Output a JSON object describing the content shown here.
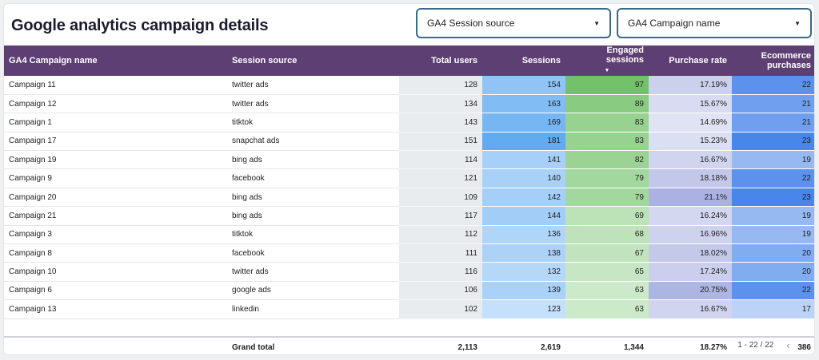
{
  "title": "Google analytics campaign details",
  "filters": {
    "session_source": "GA4 Session source",
    "campaign_name": "GA4 Campaign name"
  },
  "colors": {
    "header_bg": "#5e3f73",
    "filter_border": "#3a6b82",
    "sessions_heat": "#5aa7f0",
    "engaged_heat": "#6cbf63",
    "purchase_rate_heat": "#a6aee0",
    "ecommerce_heat": "#3f7fe8"
  },
  "table": {
    "columns": {
      "campaign": "GA4 Campaign name",
      "source": "Session source",
      "total_users": "Total users",
      "sessions": "Sessions",
      "engaged": "Engaged sessions",
      "purchase_rate": "Purchase rate",
      "ecommerce": "Ecommerce purchases"
    },
    "sort_indicator": "▼",
    "rows": [
      {
        "campaign": "Campaign 11",
        "source": "twitter ads",
        "total_users": "128",
        "sessions": "154",
        "engaged": "97",
        "purchase_rate": "17.19%",
        "ecommerce": "22"
      },
      {
        "campaign": "Campaign 12",
        "source": "twitter ads",
        "total_users": "134",
        "sessions": "163",
        "engaged": "89",
        "purchase_rate": "15.67%",
        "ecommerce": "21"
      },
      {
        "campaign": "Campaign 1",
        "source": "titktok",
        "total_users": "143",
        "sessions": "169",
        "engaged": "83",
        "purchase_rate": "14.69%",
        "ecommerce": "21"
      },
      {
        "campaign": "Campaign 17",
        "source": "snapchat ads",
        "total_users": "151",
        "sessions": "181",
        "engaged": "83",
        "purchase_rate": "15.23%",
        "ecommerce": "23"
      },
      {
        "campaign": "Campaign 19",
        "source": "bing ads",
        "total_users": "114",
        "sessions": "141",
        "engaged": "82",
        "purchase_rate": "16.67%",
        "ecommerce": "19"
      },
      {
        "campaign": "Campaign 9",
        "source": "facebook",
        "total_users": "121",
        "sessions": "140",
        "engaged": "79",
        "purchase_rate": "18.18%",
        "ecommerce": "22"
      },
      {
        "campaign": "Campaign 20",
        "source": "bing ads",
        "total_users": "109",
        "sessions": "142",
        "engaged": "79",
        "purchase_rate": "21.1%",
        "ecommerce": "23"
      },
      {
        "campaign": "Campaign 21",
        "source": "bing ads",
        "total_users": "117",
        "sessions": "144",
        "engaged": "69",
        "purchase_rate": "16.24%",
        "ecommerce": "19"
      },
      {
        "campaign": "Campaign 3",
        "source": "titktok",
        "total_users": "112",
        "sessions": "136",
        "engaged": "68",
        "purchase_rate": "16.96%",
        "ecommerce": "19"
      },
      {
        "campaign": "Campaign 8",
        "source": "facebook",
        "total_users": "111",
        "sessions": "138",
        "engaged": "67",
        "purchase_rate": "18.02%",
        "ecommerce": "20"
      },
      {
        "campaign": "Campaign 10",
        "source": "twitter ads",
        "total_users": "116",
        "sessions": "132",
        "engaged": "65",
        "purchase_rate": "17.24%",
        "ecommerce": "20"
      },
      {
        "campaign": "Campaign 6",
        "source": "google ads",
        "total_users": "106",
        "sessions": "139",
        "engaged": "63",
        "purchase_rate": "20.75%",
        "ecommerce": "22"
      },
      {
        "campaign": "Campaign 13",
        "source": "linkedin",
        "total_users": "102",
        "sessions": "123",
        "engaged": "63",
        "purchase_rate": "16.67%",
        "ecommerce": "17"
      }
    ],
    "total": {
      "label": "Grand total",
      "total_users": "2,113",
      "sessions": "2,619",
      "engaged": "1,344",
      "purchase_rate": "18.27%",
      "ecommerce": "386"
    }
  },
  "pagination": {
    "range": "1 - 22 / 22",
    "prev_icon": "chevron-left-icon",
    "next_icon": "chevron-right-icon"
  }
}
